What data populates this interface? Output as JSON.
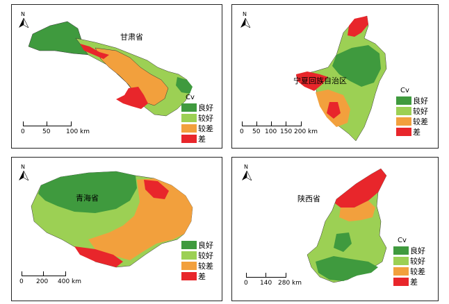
{
  "colors": {
    "good": "#3f9a3e",
    "fair": "#9cd054",
    "poor": "#f2a03d",
    "bad": "#e8262b"
  },
  "north_label": "N",
  "legend": {
    "title": "Cv",
    "items": [
      "良好",
      "较好",
      "较差",
      "差"
    ]
  },
  "panels": [
    {
      "region": "甘肃省",
      "scale_labels": [
        "0",
        "50",
        "100 km"
      ]
    },
    {
      "region": "宁夏回族自治区",
      "scale_labels": [
        "0",
        "50",
        "100",
        "150",
        "200 km"
      ]
    },
    {
      "region": "青海省",
      "scale_labels": [
        "0",
        "200",
        "400 km"
      ]
    },
    {
      "region": "陕西省",
      "scale_labels": [
        "0",
        "140",
        "280 km"
      ]
    }
  ]
}
